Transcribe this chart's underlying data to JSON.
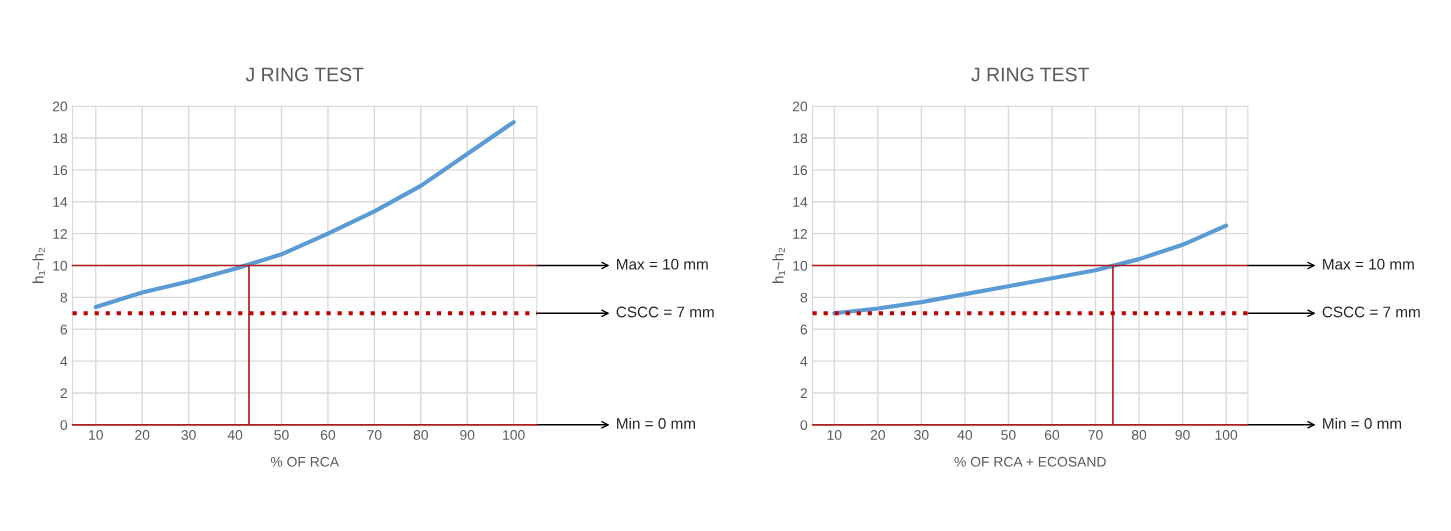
{
  "chart_data": [
    {
      "type": "line",
      "title": "J RING TEST",
      "xlabel": "% OF RCA",
      "ylabel": "h₁~h₂",
      "x": [
        10,
        20,
        30,
        40,
        50,
        60,
        70,
        80,
        90,
        100
      ],
      "series": [
        {
          "color": "#5b9bd5",
          "values": [
            7.4,
            8.3,
            9.0,
            9.8,
            10.7,
            12.0,
            13.4,
            15.0,
            17.0,
            19.0
          ]
        }
      ],
      "xlim": [
        5,
        105
      ],
      "xticks": [
        10,
        20,
        30,
        40,
        50,
        60,
        70,
        80,
        90,
        100
      ],
      "ylim": [
        0,
        20
      ],
      "yticks": [
        0,
        2,
        4,
        6,
        8,
        10,
        12,
        14,
        16,
        18,
        20
      ],
      "grid": true,
      "ref_lines": [
        {
          "axis": "y",
          "value": 10,
          "label": "Max = 10 mm",
          "color": "#b01c1c",
          "line_style": "solid"
        },
        {
          "axis": "y",
          "value": 7,
          "label": "CSCC = 7 mm",
          "color": "#c00000",
          "line_style": "dotted"
        },
        {
          "axis": "y",
          "value": 0,
          "label": "Min = 0 mm",
          "color": "#b01c1c",
          "line_style": "solid"
        },
        {
          "axis": "x",
          "value": 43,
          "color": "#b01c1c",
          "line_style": "solid"
        }
      ]
    },
    {
      "type": "line",
      "title": "J RING TEST",
      "xlabel": "% OF RCA + ECOSAND",
      "ylabel": "h₁~h₂",
      "x": [
        10,
        20,
        30,
        40,
        50,
        60,
        70,
        80,
        90,
        100
      ],
      "series": [
        {
          "color": "#5b9bd5",
          "values": [
            7.0,
            7.3,
            7.7,
            8.2,
            8.7,
            9.2,
            9.7,
            10.4,
            11.3,
            12.5
          ]
        }
      ],
      "xlim": [
        5,
        105
      ],
      "xticks": [
        10,
        20,
        30,
        40,
        50,
        60,
        70,
        80,
        90,
        100
      ],
      "ylim": [
        0,
        20
      ],
      "yticks": [
        0,
        2,
        4,
        6,
        8,
        10,
        12,
        14,
        16,
        18,
        20
      ],
      "grid": true,
      "ref_lines": [
        {
          "axis": "y",
          "value": 10,
          "label": "Max = 10 mm",
          "color": "#b01c1c",
          "line_style": "solid"
        },
        {
          "axis": "y",
          "value": 7,
          "label": "CSCC = 7 mm",
          "color": "#c00000",
          "line_style": "dotted"
        },
        {
          "axis": "y",
          "value": 0,
          "label": "Min = 0 mm",
          "color": "#b01c1c",
          "line_style": "solid"
        },
        {
          "axis": "x",
          "value": 74,
          "color": "#b01c1c",
          "line_style": "solid"
        }
      ]
    }
  ]
}
